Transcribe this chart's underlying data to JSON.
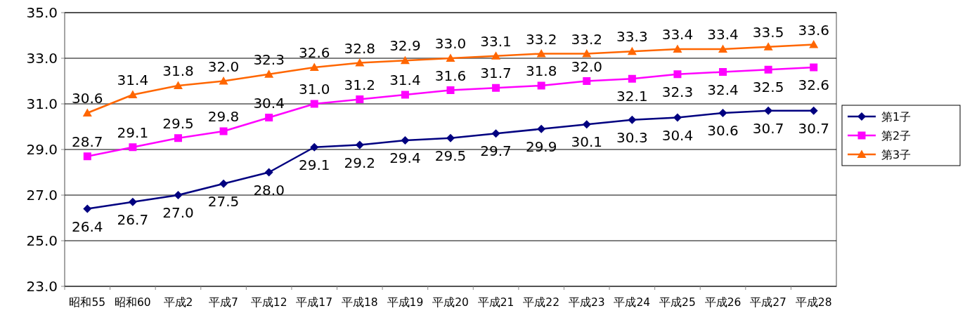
{
  "chart_data": {
    "type": "line",
    "categories": [
      "昭和55",
      "昭和60",
      "平成2",
      "平成7",
      "平成12",
      "平成17",
      "平成18",
      "平成19",
      "平成20",
      "平成21",
      "平成22",
      "平成23",
      "平成24",
      "平成25",
      "平成26",
      "平成27",
      "平成28"
    ],
    "series": [
      {
        "name": "第1子",
        "color": "#000080",
        "marker": "diamond",
        "values": [
          26.4,
          26.7,
          27.0,
          27.5,
          28.0,
          29.1,
          29.2,
          29.4,
          29.5,
          29.7,
          29.9,
          30.1,
          30.3,
          30.4,
          30.6,
          30.7,
          30.7
        ],
        "value_labels": [
          "26.4",
          "26.7",
          "27.0",
          "27.5",
          "28.0",
          "29.1",
          "29.2",
          "29.4",
          "29.5",
          "29.7",
          "29.9",
          "30.1",
          "30.3",
          "30.4",
          "30.6",
          "30.7",
          "30.7"
        ]
      },
      {
        "name": "第2子",
        "color": "#ff00ff",
        "marker": "square",
        "values": [
          28.7,
          29.1,
          29.5,
          29.8,
          30.4,
          31.0,
          31.2,
          31.4,
          31.6,
          31.7,
          31.8,
          32.0,
          32.1,
          32.3,
          32.4,
          32.5,
          32.6
        ],
        "value_labels": [
          "28.7",
          "29.1",
          "29.5",
          "29.8",
          "30.4",
          "31.0",
          "31.2",
          "31.4",
          "31.6",
          "31.7",
          "31.8",
          "32.0",
          "32.1",
          "32.3",
          "32.4",
          "32.5",
          "32.6"
        ]
      },
      {
        "name": "第3子",
        "color": "#ff6600",
        "marker": "triangle",
        "values": [
          30.6,
          31.4,
          31.8,
          32.0,
          32.3,
          32.6,
          32.8,
          32.9,
          33.0,
          33.1,
          33.2,
          33.2,
          33.3,
          33.4,
          33.4,
          33.5,
          33.6
        ],
        "value_labels": [
          "30.6",
          "31.4",
          "31.8",
          "32.0",
          "32.3",
          "32.6",
          "32.8",
          "32.9",
          "33.0",
          "33.1",
          "33.2",
          "33.2",
          "33.3",
          "33.4",
          "33.4",
          "33.5",
          "33.6"
        ]
      }
    ],
    "ylim": [
      23,
      35
    ],
    "yticks": [
      {
        "value": 23,
        "label": "23.0"
      },
      {
        "value": 25,
        "label": "25.0"
      },
      {
        "value": 27,
        "label": "27.0"
      },
      {
        "value": 29,
        "label": "29.0"
      },
      {
        "value": 31,
        "label": "31.0"
      },
      {
        "value": 33,
        "label": "33.0"
      },
      {
        "value": 35,
        "label": "35.0"
      }
    ],
    "grid": "y",
    "legend": "right"
  }
}
